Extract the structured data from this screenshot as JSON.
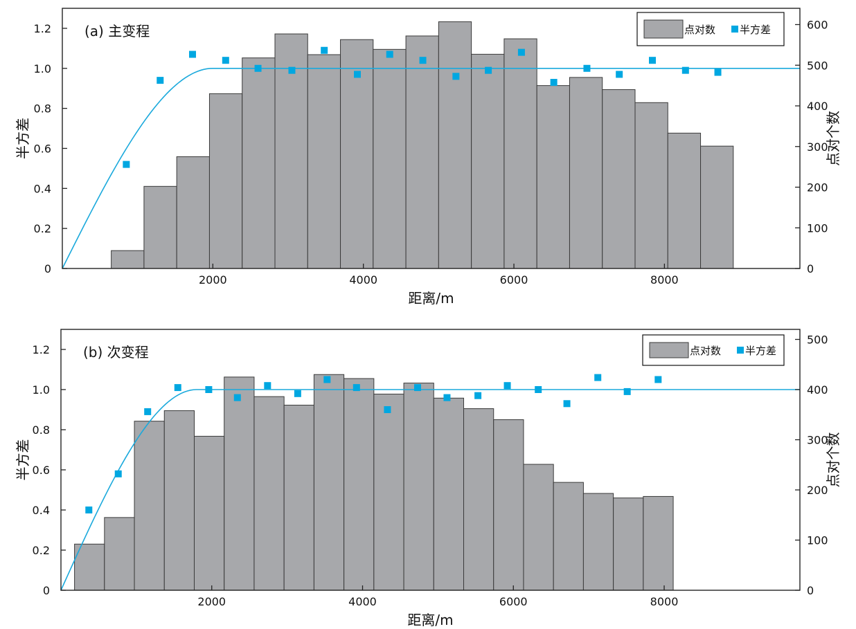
{
  "chart_data": [
    {
      "id": "a",
      "type": "bar+scatter+line",
      "title": "(a) 主变程",
      "xlabel": "距离/m",
      "ylabel_left": "半方差",
      "ylabel_right": "点对个数",
      "xlim": [
        0,
        9800
      ],
      "x_ticks": [
        2000,
        4000,
        6000,
        8000
      ],
      "ylim_left": [
        0,
        1.3
      ],
      "y_ticks_left": [
        "0",
        "0.2",
        "0.4",
        "0.6",
        "0.8",
        "1.0",
        "1.2"
      ],
      "ylim_right": [
        0,
        640
      ],
      "y_ticks_right": [
        "0",
        "100",
        "200",
        "300",
        "400",
        "500",
        "600"
      ],
      "legend": {
        "bars": "点对数",
        "points": "半方差"
      },
      "legend_position": "top-right",
      "bars": {
        "name": "点对数",
        "edges": [
          650,
          1085,
          1520,
          1955,
          2390,
          2825,
          3260,
          3695,
          4130,
          4565,
          5000,
          5435,
          5870,
          6305,
          6740,
          7175,
          7610,
          8045,
          8480,
          8915
        ],
        "values": [
          44,
          202,
          275,
          430,
          518,
          577,
          526,
          563,
          539,
          572,
          607,
          527,
          565,
          450,
          470,
          440,
          408,
          333,
          301
        ]
      },
      "semivariance": {
        "name": "半方差",
        "x": [
          850,
          1300,
          1730,
          2170,
          2600,
          3050,
          3480,
          3920,
          4350,
          4790,
          5230,
          5660,
          6100,
          6530,
          6970,
          7400,
          7840,
          8280,
          8710
        ],
        "y": [
          0.52,
          0.94,
          1.07,
          1.04,
          1.0,
          0.99,
          1.09,
          0.97,
          1.07,
          1.04,
          0.96,
          0.99,
          1.08,
          0.93,
          1.0,
          0.97,
          1.04,
          0.99,
          0.98
        ]
      },
      "model": {
        "type": "spherical",
        "nugget": 0,
        "sill": 1.0,
        "range": 2000
      },
      "colors": {
        "bar": "#a7a8ab",
        "point": "#00a7e1",
        "curve": "#1aa9dc"
      }
    },
    {
      "id": "b",
      "type": "bar+scatter+line",
      "title": "(b) 次变程",
      "xlabel": "距离/m",
      "ylabel_left": "半方差",
      "ylabel_right": "点对个数",
      "xlim": [
        0,
        9800
      ],
      "x_ticks": [
        2000,
        4000,
        6000,
        8000
      ],
      "ylim_left": [
        0,
        1.3
      ],
      "y_ticks_left": [
        "0",
        "0.2",
        "0.4",
        "0.6",
        "0.8",
        "1.0",
        "1.2"
      ],
      "ylim_right": [
        0,
        520
      ],
      "y_ticks_right": [
        "0",
        "100",
        "200",
        "300",
        "400",
        "500"
      ],
      "legend": {
        "bars": "点对数",
        "points": "半方差"
      },
      "legend_position": "top-right",
      "bars": {
        "name": "点对数",
        "edges": [
          180,
          577,
          974,
          1371,
          1768,
          2165,
          2562,
          2959,
          3356,
          3753,
          4150,
          4547,
          4944,
          5341,
          5738,
          6135,
          6532,
          6929,
          7326,
          7723,
          8120
        ],
        "values": [
          92,
          145,
          337,
          358,
          307,
          425,
          386,
          369,
          430,
          422,
          391,
          413,
          383,
          362,
          340,
          251,
          215,
          193,
          184,
          187
        ]
      },
      "semivariance": {
        "name": "半方差",
        "x": [
          370,
          760,
          1150,
          1550,
          1960,
          2340,
          2740,
          3140,
          3530,
          3920,
          4330,
          4730,
          5120,
          5530,
          5920,
          6330,
          6710,
          7120,
          7510,
          7920
        ],
        "y": [
          0.4,
          0.58,
          0.89,
          1.01,
          1.0,
          0.96,
          1.02,
          0.98,
          1.05,
          1.01,
          0.9,
          1.01,
          0.96,
          0.97,
          1.02,
          1.0,
          0.93,
          1.06,
          0.99,
          1.05
        ]
      },
      "model": {
        "type": "spherical",
        "nugget": 0,
        "sill": 1.0,
        "range": 1800
      },
      "colors": {
        "bar": "#a7a8ab",
        "point": "#00a7e1",
        "curve": "#1aa9dc"
      }
    }
  ]
}
